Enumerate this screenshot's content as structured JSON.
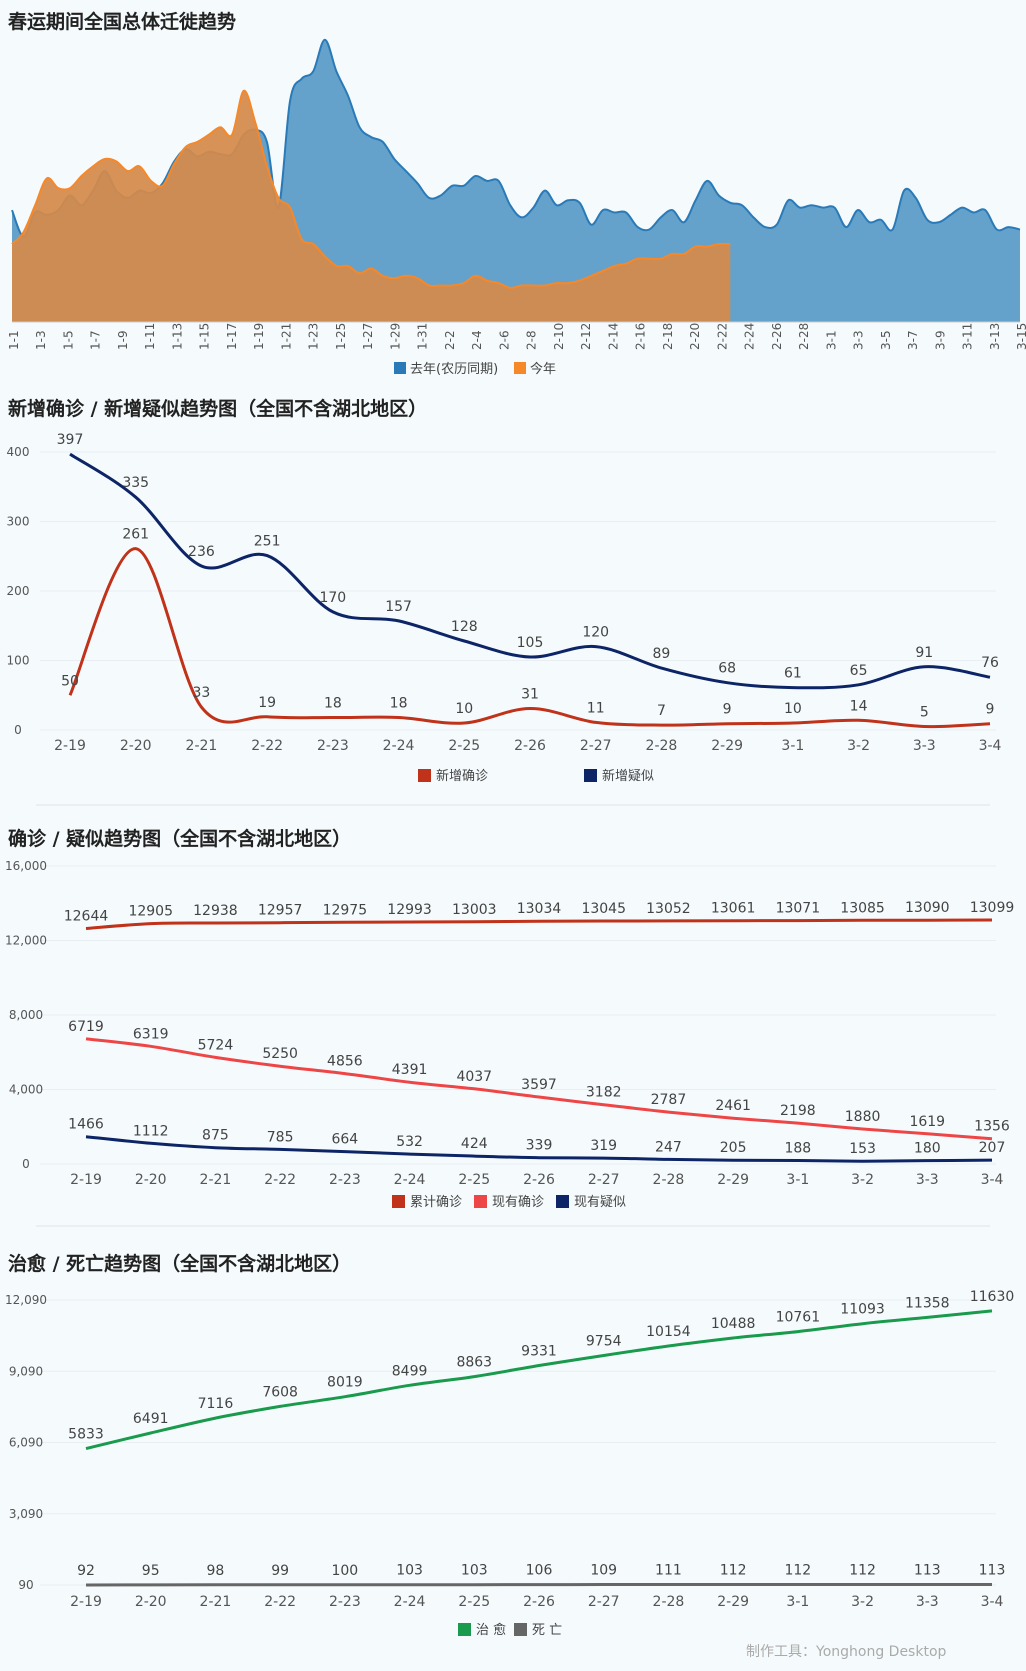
{
  "credit": "制作工具：Yonghong Desktop",
  "colors": {
    "last_year": "#2a7ab8",
    "this_year": "#f6882a",
    "new_confirmed": "#c0321a",
    "new_suspected": "#0d2566",
    "cum_confirmed": "#c0321a",
    "cur_confirmed": "#ee4646",
    "cur_suspected": "#0d2566",
    "cured": "#1a9a4c",
    "dead": "#666666"
  },
  "chart_data": [
    {
      "type": "area",
      "title": "春运期间全国总体迁徙趋势",
      "x_labels": [
        "1-1",
        "1-3",
        "1-5",
        "1-7",
        "1-9",
        "1-11",
        "1-13",
        "1-15",
        "1-17",
        "1-19",
        "1-21",
        "1-23",
        "1-25",
        "1-27",
        "1-29",
        "1-31",
        "2-2",
        "2-4",
        "2-6",
        "2-8",
        "2-10",
        "2-12",
        "2-14",
        "2-16",
        "2-18",
        "2-20",
        "2-22",
        "2-24",
        "2-26",
        "2-28",
        "3-1",
        "3-3",
        "3-5",
        "3-7",
        "3-9",
        "3-11",
        "3-13",
        "3-15"
      ],
      "series": [
        {
          "name": "去年(农历同期)",
          "values": [
            4.6,
            3.5,
            4.5,
            4.4,
            4.6,
            5.2,
            4.8,
            5.4,
            6.2,
            5.4,
            5.1,
            5.4,
            5.3,
            5.7,
            6.6,
            7.1,
            6.8,
            7.0,
            6.9,
            6.9,
            7.7,
            7.9,
            7.4,
            4.7,
            9.1,
            10.0,
            10.3,
            11.6,
            10.3,
            9.3,
            8.0,
            7.6,
            7.4,
            6.7,
            6.2,
            5.7,
            5.1,
            5.2,
            5.6,
            5.6,
            6.0,
            5.8,
            5.8,
            4.8,
            4.3,
            4.7,
            5.4,
            4.8,
            5.0,
            4.9,
            4.0,
            4.6,
            4.5,
            4.5,
            3.9,
            3.8,
            4.3,
            4.6,
            4.1,
            5.0,
            5.8,
            5.2,
            4.9,
            4.8,
            4.3,
            3.9,
            4.0,
            5.0,
            4.7,
            4.8,
            4.7,
            4.7,
            3.9,
            4.6,
            4.1,
            4.2,
            3.8,
            5.4,
            5.1,
            4.2,
            4.1,
            4.4,
            4.7,
            4.5,
            4.6,
            3.8,
            3.9,
            3.8
          ]
        },
        {
          "name": "今年",
          "values": [
            3.2,
            3.7,
            4.8,
            5.9,
            5.5,
            5.5,
            6.0,
            6.4,
            6.7,
            6.6,
            6.2,
            6.4,
            5.8,
            5.6,
            6.5,
            7.2,
            7.4,
            7.7,
            8.0,
            7.7,
            9.5,
            8.2,
            6.4,
            5.1,
            4.7,
            3.4,
            3.2,
            2.7,
            2.3,
            2.3,
            2.0,
            2.2,
            1.9,
            1.8,
            1.9,
            1.8,
            1.5,
            1.5,
            1.5,
            1.6,
            1.9,
            1.7,
            1.6,
            1.4,
            1.5,
            1.5,
            1.5,
            1.6,
            1.6,
            1.7,
            1.9,
            2.1,
            2.3,
            2.4,
            2.6,
            2.6,
            2.6,
            2.8,
            2.8,
            3.1,
            3.1,
            3.2,
            3.2
          ]
        }
      ]
    },
    {
      "type": "line",
      "title": "新增确诊 / 新增疑似趋势图（全国不含湖北地区）",
      "categories": [
        "2-19",
        "2-20",
        "2-21",
        "2-22",
        "2-23",
        "2-24",
        "2-25",
        "2-26",
        "2-27",
        "2-28",
        "2-29",
        "3-1",
        "3-2",
        "3-3",
        "3-4"
      ],
      "y_ticks": [
        "400",
        "300",
        "200",
        "100",
        "0"
      ],
      "ylim": [
        0,
        400
      ],
      "series": [
        {
          "name": "新增确诊",
          "values": [
            50,
            261,
            33,
            19,
            18,
            18,
            10,
            31,
            11,
            7,
            9,
            10,
            14,
            5,
            9
          ]
        },
        {
          "name": "新增疑似",
          "values": [
            397,
            335,
            236,
            251,
            170,
            157,
            128,
            105,
            120,
            89,
            68,
            61,
            65,
            91,
            76
          ]
        }
      ]
    },
    {
      "type": "line",
      "title": "确诊 / 疑似趋势图（全国不含湖北地区）",
      "categories": [
        "2-19",
        "2-20",
        "2-21",
        "2-22",
        "2-23",
        "2-24",
        "2-25",
        "2-26",
        "2-27",
        "2-28",
        "2-29",
        "3-1",
        "3-2",
        "3-3",
        "3-4"
      ],
      "y_ticks": [
        "16,000",
        "12,000",
        "8,000",
        "4,000",
        "0"
      ],
      "ylim": [
        0,
        16000
      ],
      "series": [
        {
          "name": "累计确诊",
          "values": [
            12644,
            12905,
            12938,
            12957,
            12975,
            12993,
            13003,
            13034,
            13045,
            13052,
            13061,
            13071,
            13085,
            13090,
            13099
          ]
        },
        {
          "name": "现有确诊",
          "values": [
            6719,
            6319,
            5724,
            5250,
            4856,
            4391,
            4037,
            3597,
            3182,
            2787,
            2461,
            2198,
            1880,
            1619,
            1356
          ]
        },
        {
          "name": "现有疑似",
          "values": [
            1466,
            1112,
            875,
            785,
            664,
            532,
            424,
            339,
            319,
            247,
            205,
            188,
            153,
            180,
            207
          ]
        }
      ]
    },
    {
      "type": "line",
      "title": "治愈 / 死亡趋势图（全国不含湖北地区）",
      "categories": [
        "2-19",
        "2-20",
        "2-21",
        "2-22",
        "2-23",
        "2-24",
        "2-25",
        "2-26",
        "2-27",
        "2-28",
        "2-29",
        "3-1",
        "3-2",
        "3-3",
        "3-4"
      ],
      "y_ticks": [
        "12,090",
        "9,090",
        "6,090",
        "3,090",
        "90"
      ],
      "ylim": [
        90,
        12090
      ],
      "series": [
        {
          "name": "治 愈",
          "values": [
            5833,
            6491,
            7116,
            7608,
            8019,
            8499,
            8863,
            9331,
            9754,
            10154,
            10488,
            10761,
            11093,
            11358,
            11630
          ]
        },
        {
          "name": "死 亡",
          "values": [
            92,
            95,
            98,
            99,
            100,
            103,
            103,
            106,
            109,
            111,
            112,
            112,
            112,
            113,
            113
          ]
        }
      ]
    }
  ]
}
